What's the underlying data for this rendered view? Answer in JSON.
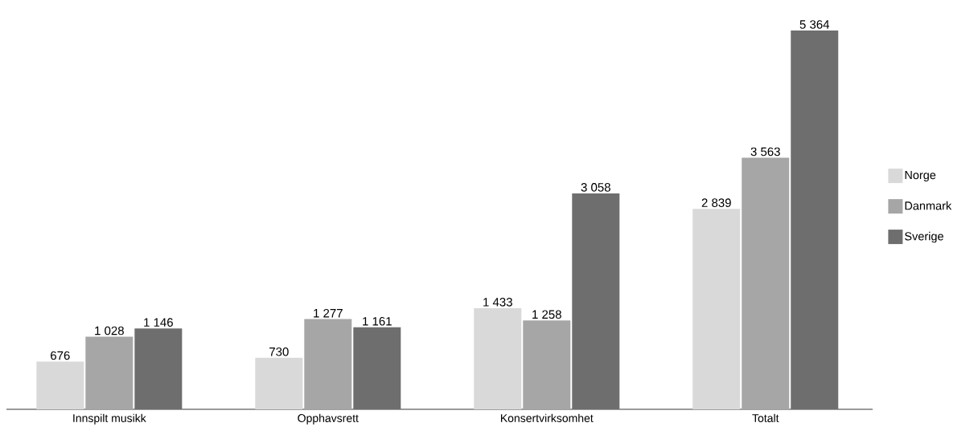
{
  "chart_data": {
    "type": "bar",
    "categories": [
      "Innspilt musikk",
      "Opphavsrett",
      "Konsertvirksomhet",
      "Totalt"
    ],
    "series": [
      {
        "name": "Norge",
        "color": "#d9d9d9",
        "values": [
          676,
          730,
          1433,
          2839
        ],
        "value_labels": [
          "676",
          "730",
          "1 433",
          "2 839"
        ]
      },
      {
        "name": "Danmark",
        "color": "#a6a6a6",
        "values": [
          1028,
          1277,
          1258,
          3563
        ],
        "value_labels": [
          "1 028",
          "1 277",
          "1 258",
          "3 563"
        ]
      },
      {
        "name": "Sverige",
        "color": "#6e6e6e",
        "values": [
          1146,
          1161,
          3058,
          5364
        ],
        "value_labels": [
          "1 146",
          "1 161",
          "3 058",
          "5 364"
        ]
      }
    ],
    "tick_labels": "x",
    "legend": "right",
    "grid": false
  }
}
